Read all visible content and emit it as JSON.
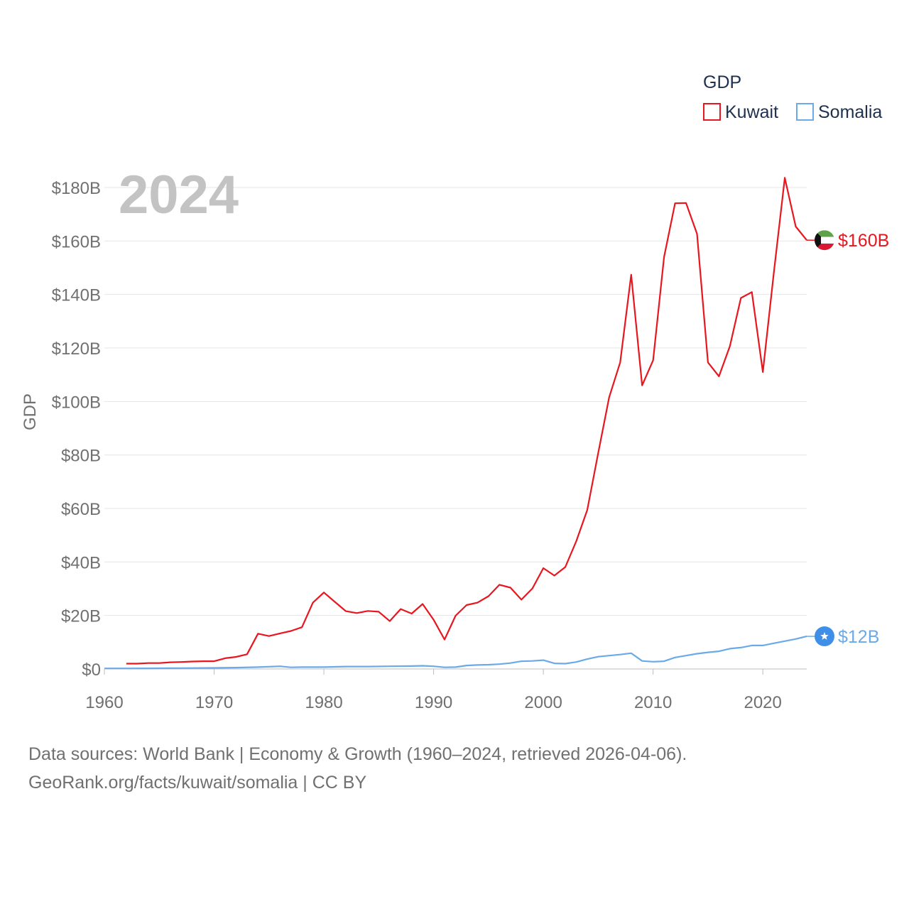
{
  "chart_data": {
    "type": "line",
    "year_label": "2024",
    "ylabel": "GDP",
    "legend": {
      "title": "GDP",
      "position": "top-right"
    },
    "xlim": [
      1960,
      2024
    ],
    "ylim": [
      0,
      180
    ],
    "x_ticks": [
      "1960",
      "1970",
      "1980",
      "1990",
      "2000",
      "2010",
      "2020"
    ],
    "y_ticks": [
      {
        "value": 0,
        "label": "$0"
      },
      {
        "value": 20,
        "label": "$20B"
      },
      {
        "value": 40,
        "label": "$40B"
      },
      {
        "value": 60,
        "label": "$60B"
      },
      {
        "value": 80,
        "label": "$80B"
      },
      {
        "value": 100,
        "label": "$100B"
      },
      {
        "value": 120,
        "label": "$120B"
      },
      {
        "value": 140,
        "label": "$140B"
      },
      {
        "value": 160,
        "label": "$160B"
      },
      {
        "value": 180,
        "label": "$180B"
      }
    ],
    "series": [
      {
        "name": "Kuwait",
        "color": "#e8161e",
        "end_label": "$160B",
        "marker": "kuwait-flag",
        "x": [
          1962,
          1963,
          1964,
          1965,
          1966,
          1967,
          1968,
          1969,
          1970,
          1971,
          1972,
          1973,
          1974,
          1975,
          1976,
          1977,
          1978,
          1979,
          1980,
          1981,
          1982,
          1983,
          1984,
          1985,
          1986,
          1987,
          1988,
          1989,
          1990,
          1991,
          1992,
          1993,
          1994,
          1995,
          1996,
          1997,
          1998,
          1999,
          2000,
          2001,
          2002,
          2003,
          2004,
          2005,
          2006,
          2007,
          2008,
          2009,
          2010,
          2011,
          2012,
          2013,
          2014,
          2015,
          2016,
          2017,
          2018,
          2019,
          2020,
          2021,
          2022,
          2023,
          2024
        ],
        "values": [
          2.0,
          2.0,
          2.2,
          2.2,
          2.5,
          2.6,
          2.8,
          2.9,
          2.9,
          4.0,
          4.5,
          5.5,
          13.2,
          12.3,
          13.3,
          14.2,
          15.6,
          24.8,
          28.6,
          25.1,
          21.6,
          20.9,
          21.7,
          21.4,
          17.9,
          22.4,
          20.7,
          24.3,
          18.4,
          11.0,
          19.9,
          23.9,
          24.8,
          27.2,
          31.5,
          30.4,
          25.9,
          30.1,
          37.7,
          34.9,
          38.1,
          47.8,
          59.4,
          80.8,
          101.6,
          114.6,
          147.4,
          106.0,
          115.4,
          154.0,
          174.1,
          174.2,
          162.7,
          114.6,
          109.4,
          120.7,
          138.7,
          140.9,
          111.0,
          148.0,
          183.6,
          165.4,
          160.3
        ]
      },
      {
        "name": "Somalia",
        "color": "#6aaae8",
        "end_label": "$12B",
        "marker": "somalia-flag",
        "x": [
          1960,
          1962,
          1964,
          1966,
          1968,
          1970,
          1972,
          1974,
          1976,
          1977,
          1978,
          1980,
          1982,
          1984,
          1986,
          1988,
          1989,
          1990,
          1991,
          1992,
          1993,
          1994,
          1995,
          1996,
          1997,
          1998,
          1999,
          2000,
          2001,
          2002,
          2003,
          2004,
          2005,
          2006,
          2007,
          2008,
          2009,
          2010,
          2011,
          2012,
          2013,
          2014,
          2015,
          2016,
          2017,
          2018,
          2019,
          2020,
          2021,
          2022,
          2023,
          2024
        ],
        "values": [
          0.2,
          0.2,
          0.25,
          0.3,
          0.35,
          0.4,
          0.5,
          0.7,
          1.0,
          0.6,
          0.7,
          0.7,
          0.9,
          0.9,
          1.0,
          1.1,
          1.2,
          1.0,
          0.6,
          0.7,
          1.3,
          1.5,
          1.6,
          1.8,
          2.2,
          2.9,
          3.0,
          3.3,
          2.1,
          2.0,
          2.6,
          3.7,
          4.6,
          5.0,
          5.4,
          5.9,
          3.0,
          2.7,
          2.9,
          4.3,
          5.0,
          5.7,
          6.2,
          6.6,
          7.6,
          8.0,
          8.8,
          8.8,
          9.6,
          10.4,
          11.2,
          12.2
        ]
      }
    ]
  },
  "footer": {
    "line1": "Data sources: World Bank | Economy & Growth (1960–2024, retrieved 2026-04-06).",
    "line2": "GeoRank.org/facts/kuwait/somalia | CC BY"
  }
}
